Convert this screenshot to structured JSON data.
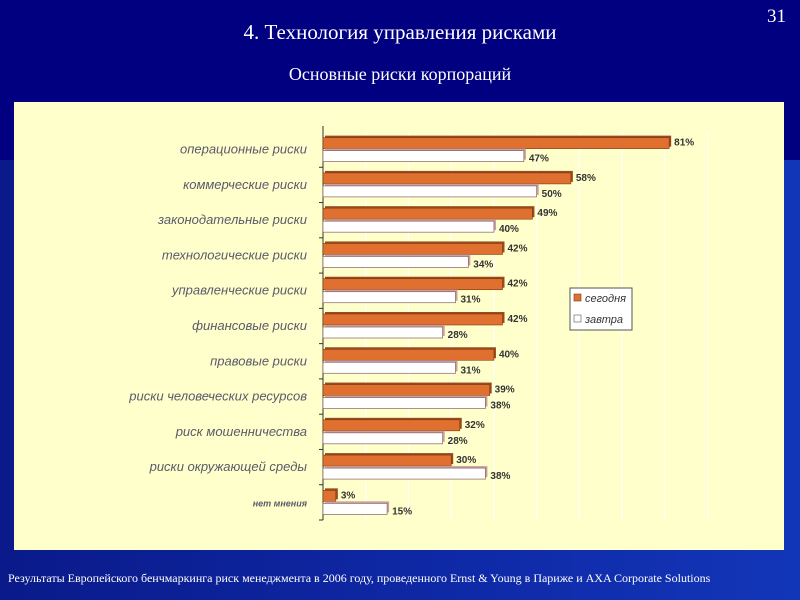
{
  "slide": {
    "number": "31",
    "title": "4. Технология управления рисками",
    "subtitle": "Основные риски корпораций",
    "footer": "Результаты Европейского бенчмаркинга риск менеджмента в 2006 году, проведенного Ernst & Young в Париже и AXA Corporate Solutions"
  },
  "colors": {
    "background": "#000080",
    "panel": "#ffffcc",
    "today": "#e07030",
    "tomorrow": "#ffffff",
    "category_text": "#5a5a6a"
  },
  "chart_data": {
    "type": "bar",
    "orientation": "horizontal",
    "title": "Основные риски корпораций",
    "categories": [
      "операционные риски",
      "коммерческие риски",
      "законодательные риски",
      "технологические риски",
      "управленческие риски",
      "финансовые риски",
      "правовые риски",
      "риски человеческих ресурсов",
      "риск мошенничества",
      "риски окружающей среды",
      "нет мнения"
    ],
    "series": [
      {
        "name": "сегодня",
        "values": [
          81,
          58,
          49,
          42,
          42,
          42,
          40,
          39,
          32,
          30,
          3
        ]
      },
      {
        "name": "завтра",
        "values": [
          47,
          50,
          40,
          34,
          31,
          28,
          31,
          38,
          28,
          38,
          15
        ]
      }
    ],
    "value_suffix": "%",
    "xlim": [
      0,
      95
    ],
    "grid": true,
    "legend": "right"
  }
}
